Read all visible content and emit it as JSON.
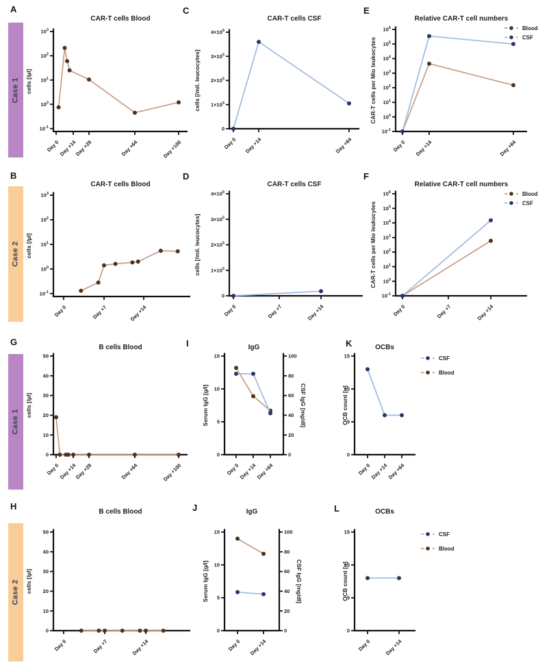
{
  "cases": [
    {
      "label": "Case 1",
      "color": "#b886c3"
    },
    {
      "label": "Case 2",
      "color": "#f8ce96"
    }
  ],
  "colors": {
    "blood_line": "#c59c86",
    "blood_marker": "#4e3118",
    "csf_line": "#9fb9e0",
    "csf_marker": "#2b336b",
    "axis": "#111111",
    "text": "#1c1c1c",
    "case_text": "#3c3c5c"
  },
  "chart_data": [
    {
      "id": "A",
      "panel": "A",
      "case": "Case 1",
      "type": "line",
      "title": "CAR-T cells Blood",
      "ylabel": "cells [/µl]",
      "yscale": "log",
      "ylim": [
        -1.12,
        3
      ],
      "yticks": [
        {
          "v": 3,
          "label": "10",
          "sup": "3"
        },
        {
          "v": 2,
          "label": "10",
          "sup": "2"
        },
        {
          "v": 1,
          "label": "10",
          "sup": "1"
        },
        {
          "v": 0,
          "label": "10",
          "sup": "0"
        },
        {
          "v": -1,
          "label": "10",
          "sup": "-1"
        }
      ],
      "xticks": [
        {
          "d": 0,
          "label": "Day 0"
        },
        {
          "d": 14,
          "label": "Day +14"
        },
        {
          "d": 29,
          "label": "Day +29"
        },
        {
          "d": 64,
          "label": "Day +64"
        },
        {
          "d": 100,
          "label": "Day +100"
        }
      ],
      "series": [
        {
          "name": "Blood",
          "key": "blood",
          "points": [
            [
              2,
              0.75
            ],
            [
              7,
              210
            ],
            [
              9,
              60
            ],
            [
              11,
              25
            ],
            [
              29,
              10.5
            ],
            [
              64,
              0.45
            ],
            [
              100,
              1.2
            ]
          ]
        }
      ]
    },
    {
      "id": "C",
      "panel": "C",
      "case": "Case 1",
      "type": "line",
      "title": "CAR-T cells CSF",
      "ylabel": "cells [/mil. leucocytes]",
      "yscale": "linear",
      "ylim": [
        0,
        400000
      ],
      "yticks": [
        {
          "v": 400000,
          "label": "4×10",
          "sup": "5"
        },
        {
          "v": 300000,
          "label": "3×10",
          "sup": "5"
        },
        {
          "v": 200000,
          "label": "2×10",
          "sup": "5"
        },
        {
          "v": 100000,
          "label": "1×10",
          "sup": "5"
        },
        {
          "v": 0,
          "label": "0"
        }
      ],
      "xticks": [
        {
          "d": 0,
          "label": "Day 0"
        },
        {
          "d": 14,
          "label": "Day +14"
        },
        {
          "d": 64,
          "label": "Day +64"
        }
      ],
      "series": [
        {
          "name": "CSF",
          "key": "csf",
          "points": [
            [
              0,
              0
            ],
            [
              14,
              360000
            ],
            [
              64,
              105000
            ]
          ]
        }
      ]
    },
    {
      "id": "E",
      "panel": "E",
      "case": "Case 1",
      "type": "line",
      "title": "Relative CAR-T cell numbers",
      "ylabel": "CAR-T cells per Mio leukocytes",
      "yscale": "log",
      "ylim": [
        -1,
        6
      ],
      "yticks": [
        {
          "v": 6,
          "label": "10",
          "sup": "6"
        },
        {
          "v": 5,
          "label": "10",
          "sup": "5"
        },
        {
          "v": 4,
          "label": "10",
          "sup": "4"
        },
        {
          "v": 3,
          "label": "10",
          "sup": "3"
        },
        {
          "v": 2,
          "label": "10",
          "sup": "2"
        },
        {
          "v": 1,
          "label": "10",
          "sup": "1"
        },
        {
          "v": 0,
          "label": "10",
          "sup": "0"
        },
        {
          "v": -1,
          "label": "10",
          "sup": "-1"
        }
      ],
      "xticks": [
        {
          "d": 0,
          "label": "Day 0"
        },
        {
          "d": 14,
          "label": "Day +14"
        },
        {
          "d": 64,
          "label": "Day +64"
        }
      ],
      "series": [
        {
          "name": "Blood",
          "key": "blood",
          "points": [
            [
              0,
              0.1
            ],
            [
              14,
              4500
            ],
            [
              64,
              150
            ]
          ]
        },
        {
          "name": "CSF",
          "key": "csf",
          "points": [
            [
              0,
              0.1
            ],
            [
              14,
              350000
            ],
            [
              64,
              100000
            ]
          ]
        }
      ],
      "legend": [
        {
          "label": "Blood",
          "key": "blood"
        },
        {
          "label": "CSF",
          "key": "csf"
        }
      ]
    },
    {
      "id": "B",
      "panel": "B",
      "case": "Case 2",
      "type": "line",
      "title": "CAR-T cells Blood",
      "ylabel": "cells [/µl]",
      "yscale": "log",
      "ylim": [
        -1.12,
        3
      ],
      "yticks": [
        {
          "v": 3,
          "label": "10",
          "sup": "3"
        },
        {
          "v": 2,
          "label": "10",
          "sup": "2"
        },
        {
          "v": 1,
          "label": "10",
          "sup": "1"
        },
        {
          "v": 0,
          "label": "10",
          "sup": "0"
        },
        {
          "v": -1,
          "label": "10",
          "sup": "-1"
        }
      ],
      "xticks": [
        {
          "d": 0,
          "label": "Day 0"
        },
        {
          "d": 7,
          "label": "Day +7"
        },
        {
          "d": 14,
          "label": "Day +14"
        }
      ],
      "series": [
        {
          "name": "Blood",
          "key": "blood",
          "points": [
            [
              3,
              0.13
            ],
            [
              6,
              0.28
            ],
            [
              7,
              1.4
            ],
            [
              9,
              1.6
            ],
            [
              12,
              1.85
            ],
            [
              13,
              2.0
            ],
            [
              17,
              5.5
            ],
            [
              20,
              5.2
            ]
          ]
        }
      ]
    },
    {
      "id": "D",
      "panel": "D",
      "case": "Case 2",
      "type": "line",
      "title": "CAR-T cells CSF",
      "ylabel": "cells [/mil. leucocytes]",
      "yscale": "linear",
      "ylim": [
        0,
        400000
      ],
      "yticks": [
        {
          "v": 400000,
          "label": "4×10",
          "sup": "5"
        },
        {
          "v": 300000,
          "label": "3×10",
          "sup": "5"
        },
        {
          "v": 200000,
          "label": "2×10",
          "sup": "5"
        },
        {
          "v": 100000,
          "label": "1×10",
          "sup": "5"
        },
        {
          "v": 0,
          "label": "0"
        }
      ],
      "xticks": [
        {
          "d": 0,
          "label": "Day 0"
        },
        {
          "d": 7,
          "label": "Day +7"
        },
        {
          "d": 14,
          "label": "Day +14"
        }
      ],
      "series": [
        {
          "name": "CSF",
          "key": "csf",
          "points": [
            [
              0,
              0
            ],
            [
              14,
              18000
            ]
          ]
        }
      ]
    },
    {
      "id": "F",
      "panel": "F",
      "case": "Case 2",
      "type": "line",
      "title": "Relative CAR-T cell numbers",
      "ylabel": "CAR-T cells per Mio leukocytes",
      "yscale": "log",
      "ylim": [
        -1,
        6
      ],
      "yticks": [
        {
          "v": 6,
          "label": "10",
          "sup": "6"
        },
        {
          "v": 5,
          "label": "10",
          "sup": "5"
        },
        {
          "v": 4,
          "label": "10",
          "sup": "4"
        },
        {
          "v": 3,
          "label": "10",
          "sup": "3"
        },
        {
          "v": 2,
          "label": "10",
          "sup": "2"
        },
        {
          "v": 1,
          "label": "10",
          "sup": "1"
        },
        {
          "v": 0,
          "label": "10",
          "sup": "0"
        },
        {
          "v": -1,
          "label": "10",
          "sup": "-1"
        }
      ],
      "xticks": [
        {
          "d": 0,
          "label": "Day 0"
        },
        {
          "d": 7,
          "label": "Day +7"
        },
        {
          "d": 14,
          "label": "Day +14"
        }
      ],
      "series": [
        {
          "name": "Blood",
          "key": "blood",
          "points": [
            [
              0,
              0.1
            ],
            [
              14,
              600
            ]
          ]
        },
        {
          "name": "CSF",
          "key": "csf",
          "points": [
            [
              0,
              0.1
            ],
            [
              14,
              15000
            ]
          ]
        }
      ],
      "legend": [
        {
          "label": "Blood",
          "key": "blood"
        },
        {
          "label": "CSF",
          "key": "csf"
        }
      ]
    },
    {
      "id": "G",
      "panel": "G",
      "case": "Case 1",
      "type": "line",
      "title": "B cells Blood",
      "ylabel": "cells [/µl]",
      "yscale": "linear",
      "ylim": [
        0,
        50
      ],
      "yticks": [
        {
          "v": 50,
          "label": "50"
        },
        {
          "v": 40,
          "label": "40"
        },
        {
          "v": 30,
          "label": "30"
        },
        {
          "v": 20,
          "label": "20"
        },
        {
          "v": 10,
          "label": "10"
        },
        {
          "v": 0,
          "label": "0"
        }
      ],
      "xticks": [
        {
          "d": 0,
          "label": "Day 0"
        },
        {
          "d": 14,
          "label": "Day +14"
        },
        {
          "d": 29,
          "label": "Day +29"
        },
        {
          "d": 64,
          "label": "Day +64"
        },
        {
          "d": 100,
          "label": "Day +100"
        }
      ],
      "series": [
        {
          "name": "Blood",
          "key": "blood",
          "points": [
            [
              0,
              19
            ],
            [
              3,
              0
            ],
            [
              8,
              0
            ],
            [
              10,
              0
            ],
            [
              14,
              0
            ],
            [
              29,
              0
            ],
            [
              64,
              0
            ],
            [
              100,
              0
            ]
          ]
        }
      ]
    },
    {
      "id": "I",
      "panel": "I",
      "case": "Case 1",
      "type": "line",
      "title": "IgG",
      "ylabel": "Serum IgG [g/l]",
      "ylabel_right": "CSF IgG [mg/dl]",
      "yscale": "linear",
      "ylim": [
        0,
        15
      ],
      "yticks": [
        {
          "v": 15,
          "label": "15"
        },
        {
          "v": 10,
          "label": "10"
        },
        {
          "v": 5,
          "label": "5"
        },
        {
          "v": 0,
          "label": "0"
        }
      ],
      "yticks_right": [
        {
          "v": 100,
          "label": "100"
        },
        {
          "v": 80,
          "label": "80"
        },
        {
          "v": 60,
          "label": "60"
        },
        {
          "v": 40,
          "label": "40"
        },
        {
          "v": 20,
          "label": "20"
        },
        {
          "v": 0,
          "label": "0"
        }
      ],
      "xticks": [
        {
          "d": 0,
          "label": "Day 0"
        },
        {
          "d": 14,
          "label": "Day +14"
        },
        {
          "d": 64,
          "label": "Day +64"
        }
      ],
      "series": [
        {
          "name": "Serum IgG",
          "key": "blood",
          "points": [
            [
              0,
              13.2
            ],
            [
              14,
              8.9
            ],
            [
              64,
              6.7
            ]
          ]
        },
        {
          "name": "CSF IgG",
          "key": "csf",
          "axis": "right",
          "points": [
            [
              0,
              82
            ],
            [
              14,
              82
            ],
            [
              64,
              42
            ]
          ]
        }
      ]
    },
    {
      "id": "K",
      "panel": "K",
      "case": "Case 1",
      "type": "line",
      "title": "OCBs",
      "ylabel": "OCB count [n]",
      "yscale": "linear",
      "ylim": [
        0,
        15
      ],
      "yticks": [
        {
          "v": 15,
          "label": "15"
        },
        {
          "v": 10,
          "label": "10"
        },
        {
          "v": 5,
          "label": "5"
        },
        {
          "v": 0,
          "label": "0"
        }
      ],
      "xticks": [
        {
          "d": 0,
          "label": "Day 0"
        },
        {
          "d": 14,
          "label": "Day +14"
        },
        {
          "d": 64,
          "label": "Day +64"
        }
      ],
      "series": [
        {
          "name": "CSF",
          "key": "csf",
          "points": [
            [
              0,
              13
            ],
            [
              14,
              6
            ],
            [
              64,
              6
            ]
          ]
        }
      ],
      "legend": [
        {
          "label": "CSF",
          "key": "csf"
        },
        {
          "label": "Blood",
          "key": "blood"
        }
      ]
    },
    {
      "id": "H",
      "panel": "H",
      "case": "Case 2",
      "type": "line",
      "title": "B cells Blood",
      "ylabel": "cells [/µl]",
      "yscale": "linear",
      "ylim": [
        0,
        50
      ],
      "yticks": [
        {
          "v": 50,
          "label": "50"
        },
        {
          "v": 40,
          "label": "40"
        },
        {
          "v": 30,
          "label": "30"
        },
        {
          "v": 20,
          "label": "20"
        },
        {
          "v": 10,
          "label": "10"
        },
        {
          "v": 0,
          "label": "0"
        }
      ],
      "xticks": [
        {
          "d": 0,
          "label": "Day 0"
        },
        {
          "d": 7,
          "label": "Day +7"
        },
        {
          "d": 14,
          "label": "Day +14"
        }
      ],
      "series": [
        {
          "name": "Blood",
          "key": "blood",
          "points": [
            [
              3,
              0
            ],
            [
              6,
              0
            ],
            [
              7,
              0
            ],
            [
              10,
              0
            ],
            [
              13,
              0
            ],
            [
              14,
              0
            ],
            [
              17,
              0
            ]
          ]
        }
      ]
    },
    {
      "id": "J",
      "panel": "J",
      "case": "Case 2",
      "type": "line",
      "title": "IgG",
      "ylabel": "Serum IgG [g/l]",
      "ylabel_right": "CSF IgG [mg/dl]",
      "yscale": "linear",
      "ylim": [
        0,
        15
      ],
      "yticks": [
        {
          "v": 15,
          "label": "15"
        },
        {
          "v": 10,
          "label": "10"
        },
        {
          "v": 5,
          "label": "5"
        },
        {
          "v": 0,
          "label": "0"
        }
      ],
      "yticks_right": [
        {
          "v": 100,
          "label": "100"
        },
        {
          "v": 80,
          "label": "80"
        },
        {
          "v": 60,
          "label": "60"
        },
        {
          "v": 40,
          "label": "40"
        },
        {
          "v": 20,
          "label": "20"
        },
        {
          "v": 0,
          "label": "0"
        }
      ],
      "xticks": [
        {
          "d": 0,
          "label": "Day 0"
        },
        {
          "d": 14,
          "label": "Day +14"
        }
      ],
      "series": [
        {
          "name": "Serum IgG",
          "key": "blood",
          "points": [
            [
              0,
              14
            ],
            [
              14,
              11.7
            ]
          ]
        },
        {
          "name": "CSF IgG",
          "key": "csf",
          "axis": "right",
          "points": [
            [
              0,
              39
            ],
            [
              14,
              37
            ]
          ]
        }
      ]
    },
    {
      "id": "L",
      "panel": "L",
      "case": "Case 2",
      "type": "line",
      "title": "OCBs",
      "ylabel": "OCB count [n]",
      "yscale": "linear",
      "ylim": [
        0,
        15
      ],
      "yticks": [
        {
          "v": 15,
          "label": "15"
        },
        {
          "v": 10,
          "label": "10"
        },
        {
          "v": 5,
          "label": "5"
        },
        {
          "v": 0,
          "label": "0"
        }
      ],
      "xticks": [
        {
          "d": 0,
          "label": "Day 0"
        },
        {
          "d": 14,
          "label": "Day +14"
        }
      ],
      "series": [
        {
          "name": "CSF",
          "key": "csf",
          "points": [
            [
              0,
              8
            ],
            [
              14,
              8
            ]
          ]
        }
      ],
      "legend": [
        {
          "label": "CSF",
          "key": "csf"
        },
        {
          "label": "Blood",
          "key": "blood"
        }
      ]
    }
  ]
}
